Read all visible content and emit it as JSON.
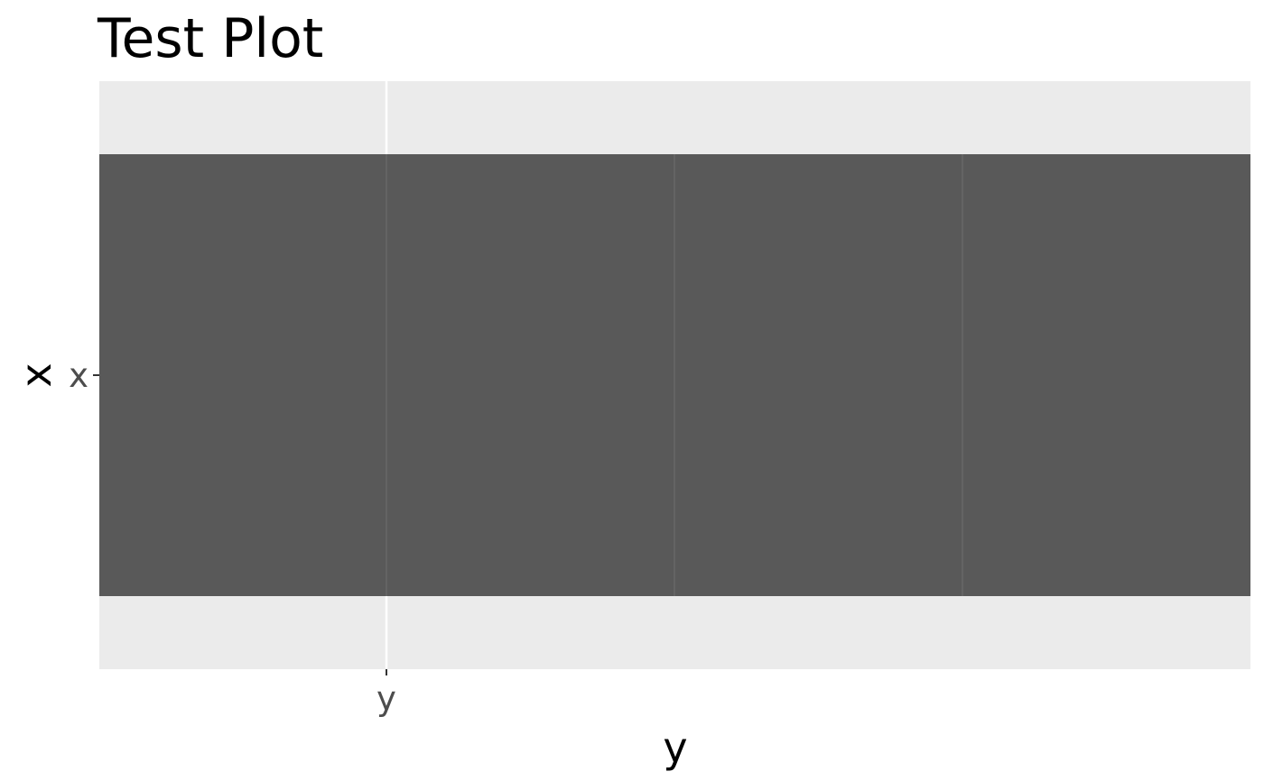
{
  "chart_data": {
    "type": "bar",
    "title": "Test Plot",
    "xlabel": "y",
    "ylabel": "x",
    "x_ticks": [
      "y"
    ],
    "y_ticks": [
      "x"
    ],
    "categories": [
      "x"
    ],
    "segments": 4,
    "bar_color": "#595959",
    "segment_line_color": "#6E6E6E",
    "panel_background": "#EBEBEB",
    "grid_color": "#FFFFFF",
    "tick_color": "#333333",
    "grid": true,
    "legend": "none"
  }
}
